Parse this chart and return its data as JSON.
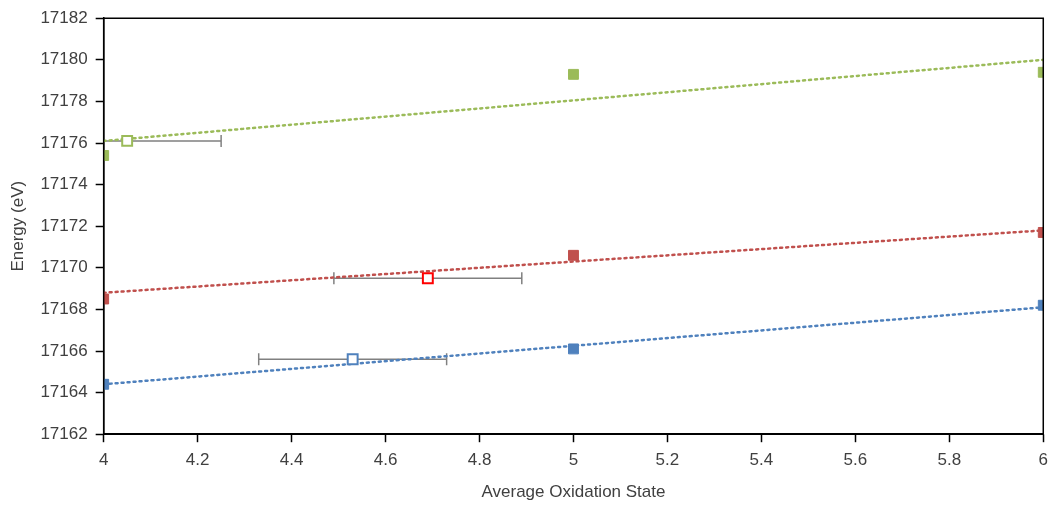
{
  "chart_data": {
    "type": "scatter",
    "xlabel": "Average Oxidation State",
    "ylabel": "Energy (eV)",
    "xlim": [
      4,
      6
    ],
    "xticks": [
      4,
      {
        "value": 4.2,
        "label": "4.2"
      },
      {
        "value": 4.4,
        "label": "4.4"
      },
      {
        "value": 4.6,
        "label": "4.6"
      },
      {
        "value": 4.8,
        "label": "4.8"
      },
      5,
      {
        "value": 5.2,
        "label": "5.2"
      },
      {
        "value": 5.4,
        "label": "5.4"
      },
      {
        "value": 5.6,
        "label": "5.6"
      },
      {
        "value": 5.8,
        "label": "5.8"
      },
      6
    ],
    "ylim": [
      17162,
      17182
    ],
    "yticks": [
      17162,
      17164,
      17166,
      17168,
      17170,
      17172,
      17174,
      17176,
      17178,
      17180,
      17182
    ],
    "grid": false,
    "legend": false,
    "marker": "square",
    "series": [
      {
        "type": "line",
        "color": "#4f81bd",
        "x": [
          4,
          6
        ],
        "values": [
          17164.4,
          17168.1
        ],
        "line_style": "dotted",
        "marker": "none"
      },
      {
        "type": "line",
        "color": "#c0504d",
        "x": [
          4,
          6
        ],
        "values": [
          17168.8,
          17171.8
        ],
        "line_style": "dotted",
        "marker": "none"
      },
      {
        "type": "line",
        "color": "#9bbb59",
        "x": [
          4,
          6
        ],
        "values": [
          17176.1,
          17180.0
        ],
        "line_style": "dotted",
        "marker": "none"
      },
      {
        "color": "#4f81bd",
        "x": [
          4,
          5,
          6
        ],
        "values": [
          17164.4,
          17166.1,
          17168.2
        ]
      },
      {
        "color": "#c0504d",
        "x": [
          4,
          5,
          6
        ],
        "values": [
          17168.5,
          17170.6,
          17171.7
        ]
      },
      {
        "color": "#9bbb59",
        "x": [
          4,
          5,
          6
        ],
        "values": [
          17175.4,
          17179.3,
          17179.4
        ]
      },
      {
        "color": "#4f81bd",
        "x": [
          4.53
        ],
        "values": [
          17165.6
        ],
        "xerrors": [
          0.2
        ]
      },
      {
        "color": "#ff0000",
        "x": [
          4.69
        ],
        "values": [
          17169.5
        ],
        "xerrors": [
          0.2
        ]
      },
      {
        "color": "#9bbb59",
        "x": [
          4.05
        ],
        "values": [
          17176.1
        ],
        "xerrors": [
          0.2
        ]
      }
    ]
  }
}
